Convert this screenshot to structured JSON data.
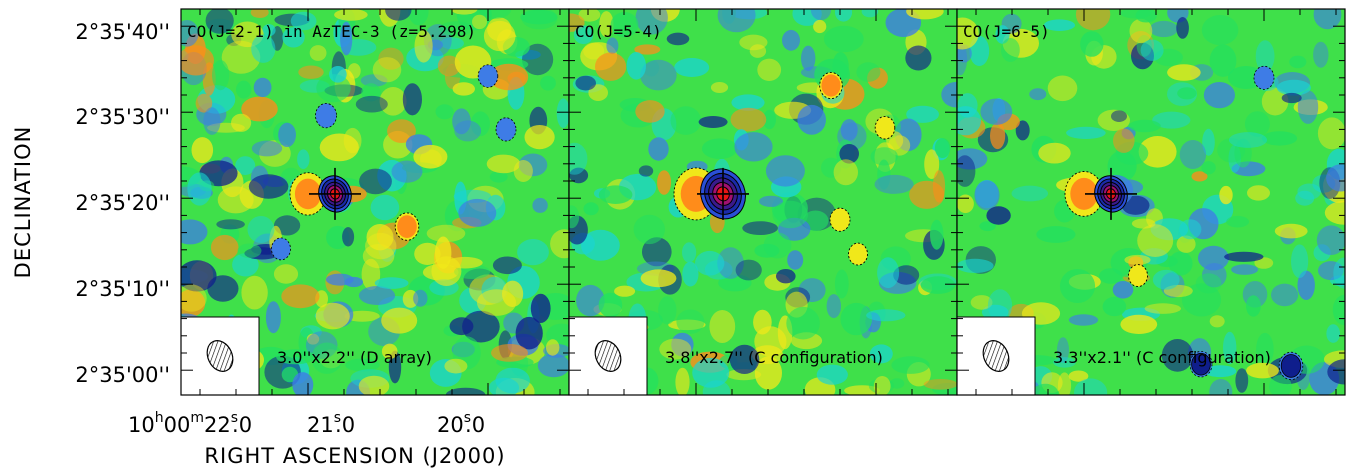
{
  "chart_data": {
    "type": "heatmap",
    "xlabel": "RIGHT ASCENSION (J2000)",
    "ylabel": "DECLINATION",
    "x_ticks": [
      {
        "h": "10",
        "m": "00",
        "s": "22",
        "frac": ".0"
      },
      {
        "s": "21",
        "frac": ".0"
      },
      {
        "s": "20",
        "frac": ".0"
      }
    ],
    "y_ticks": [
      "2°35'40''",
      "2°35'30''",
      "2°35'20''",
      "2°35'10''",
      "2°35'00''"
    ],
    "ylim_arcsec": [
      157,
      163
    ],
    "colormap": [
      "#0f1e8c",
      "#3e7ce6",
      "#19d4d4",
      "#22e060",
      "#f0e81a",
      "#ff8c1a",
      "#e81515"
    ],
    "panels": [
      {
        "title": "CO(J=2-1) in AzTEC-3 (z=5.298)",
        "beam_label": "3.0''x2.2'' (D array)",
        "source": {
          "ra_s": 20.85,
          "dec_arcsec": 20.5
        },
        "peaks": [
          [
            21.0,
            20.5,
            2.2
          ],
          [
            20.45,
            16.7,
            0.95
          ],
          [
            20.9,
            29.6,
            -0.7
          ],
          [
            21.15,
            14.1,
            -0.5
          ],
          [
            20.0,
            34.2,
            -0.55
          ],
          [
            19.9,
            28.0,
            -0.6
          ],
          [
            21.8,
            12.9,
            -0.5
          ]
        ]
      },
      {
        "title": "CO(J=5-4)",
        "beam_label": "3.8''x2.7'' (C configuration)",
        "source": {
          "ra_s": 20.85,
          "dec_arcsec": 20.5
        },
        "peaks": [
          [
            21.0,
            20.5,
            3.0
          ],
          [
            20.25,
            33.1,
            0.85
          ],
          [
            20.2,
            17.5,
            0.6
          ],
          [
            19.95,
            28.2,
            0.55
          ],
          [
            20.1,
            13.5,
            0.5
          ]
        ]
      },
      {
        "title": "CO(J=6-5)",
        "beam_label": "3.3''x2.1'' (C configuration)",
        "source": {
          "ra_s": 20.85,
          "dec_arcsec": 20.5
        },
        "peaks": [
          [
            21.0,
            20.5,
            2.4
          ],
          [
            20.35,
            0.7,
            -0.8
          ],
          [
            19.85,
            0.5,
            -0.95
          ],
          [
            20.0,
            34.0,
            -0.6
          ],
          [
            20.7,
            11.0,
            0.5
          ]
        ]
      }
    ]
  }
}
